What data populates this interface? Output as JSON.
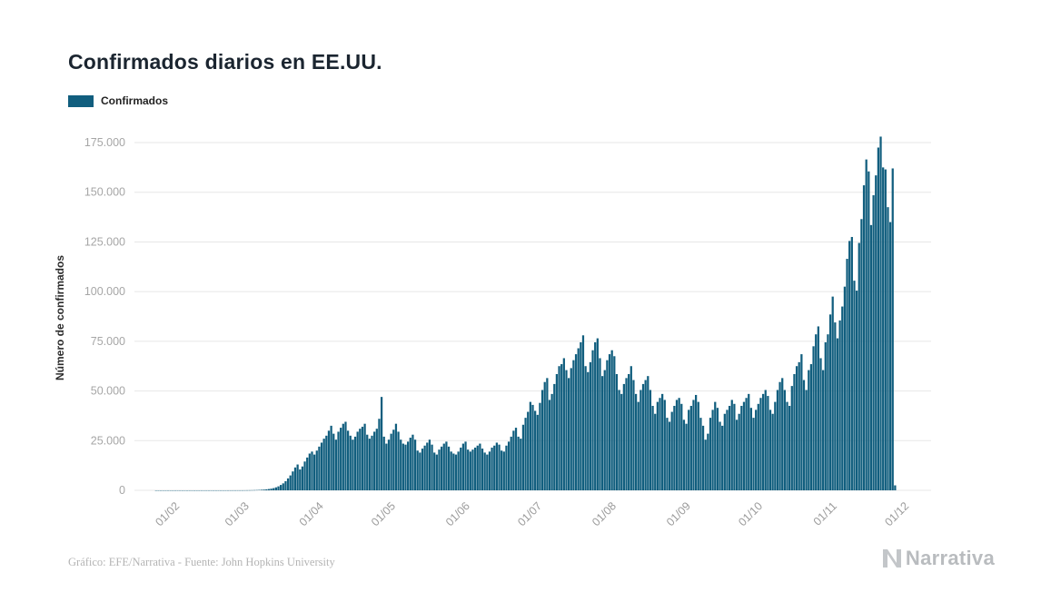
{
  "title": "Confirmados diarios en EE.UU.",
  "legend": {
    "label": "Confirmados",
    "color": "#115e7e"
  },
  "y_axis": {
    "label": "Número de confirmados",
    "tick_labels": [
      "0",
      "25.000",
      "50.000",
      "75.000",
      "100.000",
      "125.000",
      "150.000",
      "175.000"
    ],
    "tick_values": [
      0,
      25000,
      50000,
      75000,
      100000,
      125000,
      150000,
      175000
    ]
  },
  "x_axis": {
    "ticks": [
      {
        "label": "01/02",
        "day": 10
      },
      {
        "label": "01/03",
        "day": 39
      },
      {
        "label": "01/04",
        "day": 70
      },
      {
        "label": "01/05",
        "day": 100
      },
      {
        "label": "01/06",
        "day": 131
      },
      {
        "label": "01/07",
        "day": 161
      },
      {
        "label": "01/08",
        "day": 192
      },
      {
        "label": "01/09",
        "day": 223
      },
      {
        "label": "01/10",
        "day": 253
      },
      {
        "label": "01/11",
        "day": 284
      },
      {
        "label": "01/12",
        "day": 314
      }
    ]
  },
  "footer": {
    "credit": "Gráfico: EFE/Narrativa - Fuente: John Hopkins University",
    "brand": "Narrativa"
  },
  "chart_data": {
    "type": "bar",
    "title": "Confirmados diarios en EE.UU.",
    "series_name": "Confirmados",
    "xlabel": "",
    "ylabel": "Número de confirmados",
    "ylim": [
      0,
      175000
    ],
    "grid": true,
    "legend_position": "top-left",
    "bar_color": "#115e7e",
    "start_date": "2020-01-22",
    "frequency": "daily",
    "values": [
      1,
      0,
      1,
      0,
      2,
      5,
      1,
      2,
      3,
      4,
      3,
      1,
      2,
      2,
      3,
      2,
      1,
      2,
      1,
      3,
      2,
      4,
      3,
      5,
      4,
      3,
      6,
      5,
      4,
      6,
      8,
      10,
      12,
      14,
      18,
      20,
      24,
      30,
      45,
      60,
      80,
      110,
      150,
      210,
      280,
      380,
      500,
      650,
      850,
      1100,
      1500,
      2000,
      2700,
      3500,
      4600,
      6000,
      7500,
      9500,
      11500,
      13000,
      10500,
      12000,
      14500,
      16500,
      18500,
      19500,
      18000,
      20000,
      22000,
      24000,
      26000,
      27500,
      30000,
      32500,
      28500,
      25500,
      29500,
      31500,
      33500,
      34500,
      30000,
      27500,
      25500,
      27000,
      29500,
      31000,
      32000,
      33500,
      28000,
      26000,
      27500,
      29500,
      31000,
      36000,
      47000,
      27000,
      23500,
      25500,
      28500,
      30500,
      33500,
      29500,
      25500,
      23500,
      23000,
      24500,
      26500,
      28000,
      25500,
      20000,
      19000,
      21000,
      22500,
      24000,
      25500,
      23000,
      19000,
      18000,
      20500,
      22000,
      23500,
      24500,
      22000,
      19500,
      18500,
      18000,
      19500,
      21500,
      23500,
      24500,
      20500,
      19500,
      20500,
      21500,
      22500,
      23500,
      21000,
      19000,
      18000,
      19500,
      21500,
      22500,
      24000,
      23000,
      20000,
      19500,
      22500,
      24500,
      27000,
      30000,
      31500,
      27000,
      26000,
      33000,
      36500,
      39500,
      44500,
      43000,
      40000,
      38000,
      44000,
      50500,
      54500,
      56500,
      45500,
      48500,
      53500,
      58500,
      62500,
      63500,
      66500,
      60500,
      56500,
      61500,
      65500,
      68500,
      71500,
      74500,
      78000,
      62500,
      59500,
      64500,
      70500,
      74500,
      76500,
      66500,
      57500,
      60500,
      65500,
      68500,
      70500,
      67500,
      58500,
      50500,
      48500,
      53500,
      56500,
      58500,
      62500,
      55500,
      48500,
      44500,
      50500,
      53500,
      55500,
      57500,
      50500,
      42500,
      38500,
      44500,
      46500,
      48500,
      45500,
      36500,
      34500,
      39500,
      42500,
      45500,
      46500,
      43500,
      35500,
      33500,
      40500,
      42500,
      45500,
      48000,
      44500,
      36500,
      32500,
      25500,
      28500,
      36500,
      40500,
      44500,
      41500,
      34500,
      32500,
      38500,
      40500,
      42500,
      45500,
      43500,
      35500,
      38500,
      42500,
      44500,
      46500,
      48500,
      41500,
      36500,
      40500,
      43500,
      46500,
      48500,
      50500,
      47500,
      40500,
      38500,
      44500,
      50500,
      54500,
      56500,
      50500,
      44500,
      42500,
      52500,
      58500,
      62500,
      64500,
      68500,
      55500,
      50500,
      60500,
      63500,
      72500,
      78500,
      82500,
      66500,
      60500,
      74500,
      78500,
      88500,
      97500,
      84500,
      76500,
      85500,
      92500,
      102500,
      116500,
      125500,
      127500,
      105500,
      100500,
      124500,
      136500,
      153500,
      166500,
      160500,
      133500,
      148500,
      158500,
      172500,
      178000,
      162500,
      161500,
      142500,
      135000,
      162000,
      2500
    ]
  }
}
